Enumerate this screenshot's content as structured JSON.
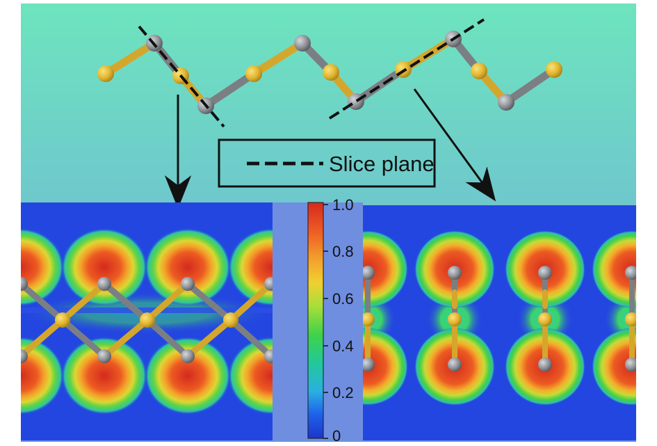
{
  "legend": {
    "label": "Slice plane"
  },
  "colorbar": {
    "ticks": [
      "1.0",
      "0.8",
      "0.6",
      "0.4",
      "0.2",
      "0"
    ],
    "tick_values": [
      1.0,
      0.8,
      0.6,
      0.4,
      0.2,
      0
    ],
    "colors": [
      "#d42a1e",
      "#ee6a24",
      "#f3c12c",
      "#9ede3c",
      "#37d24a",
      "#1fc6a6",
      "#1e6ef0",
      "#1d3fd2"
    ]
  },
  "colors": {
    "sulfur": "#e0b52f",
    "metal": "#8e9196",
    "bond_sulfur": "#d4a72c",
    "bond_metal": "#7b7f84",
    "sky_top": "#6ee3bf",
    "sky_bottom": "#6fa5dd",
    "panel_bg": "#2446e0",
    "gap_bg": "#6f8ee0"
  }
}
